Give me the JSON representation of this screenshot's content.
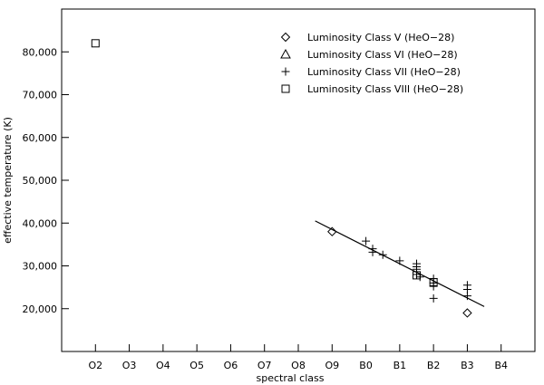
{
  "chart_data": {
    "type": "scatter",
    "xlabel": "spectral class",
    "ylabel": "effective temperature (K)",
    "x_categories": [
      "O2",
      "O3",
      "O4",
      "O5",
      "O6",
      "O7",
      "O8",
      "O9",
      "B0",
      "B1",
      "B2",
      "B3",
      "B4"
    ],
    "x_numeric": [
      2,
      3,
      4,
      5,
      6,
      7,
      8,
      9,
      10,
      11,
      12,
      13,
      14
    ],
    "xlim": [
      1,
      15
    ],
    "ylim": [
      10000,
      90000
    ],
    "y_ticks": [
      20000,
      30000,
      40000,
      50000,
      60000,
      70000,
      80000
    ],
    "y_tick_labels": [
      "20,000",
      "30,000",
      "40,000",
      "50,000",
      "60,000",
      "70,000",
      "80,000"
    ],
    "grid": false,
    "legend_position": "top-right",
    "series": [
      {
        "name": "Luminosity Class V (HeO−28)",
        "marker": "diamond",
        "points": [
          [
            9.0,
            38000
          ],
          [
            13.0,
            19000
          ]
        ]
      },
      {
        "name": "Luminosity Class VI (HeO−28)",
        "marker": "triangle",
        "points": []
      },
      {
        "name": "Luminosity Class VII (HeO−28)",
        "marker": "plus",
        "points": [
          [
            10.0,
            35800
          ],
          [
            10.2,
            34000
          ],
          [
            10.2,
            33200
          ],
          [
            10.5,
            32600
          ],
          [
            11.0,
            31200
          ],
          [
            11.5,
            30500
          ],
          [
            11.5,
            29800
          ],
          [
            11.5,
            29200
          ],
          [
            11.5,
            28000
          ],
          [
            11.6,
            27400
          ],
          [
            12.0,
            27000
          ],
          [
            12.0,
            26000
          ],
          [
            12.0,
            25200
          ],
          [
            12.0,
            22400
          ],
          [
            13.0,
            25500
          ],
          [
            13.0,
            24500
          ],
          [
            13.0,
            23000
          ]
        ]
      },
      {
        "name": "Luminosity Class VIII (HeO−28)",
        "marker": "square",
        "points": [
          [
            2.0,
            82000
          ],
          [
            11.5,
            27800
          ],
          [
            12.0,
            26200
          ]
        ]
      }
    ],
    "fit_line": {
      "points": [
        [
          8.5,
          40500
        ],
        [
          13.5,
          20500
        ]
      ]
    }
  }
}
